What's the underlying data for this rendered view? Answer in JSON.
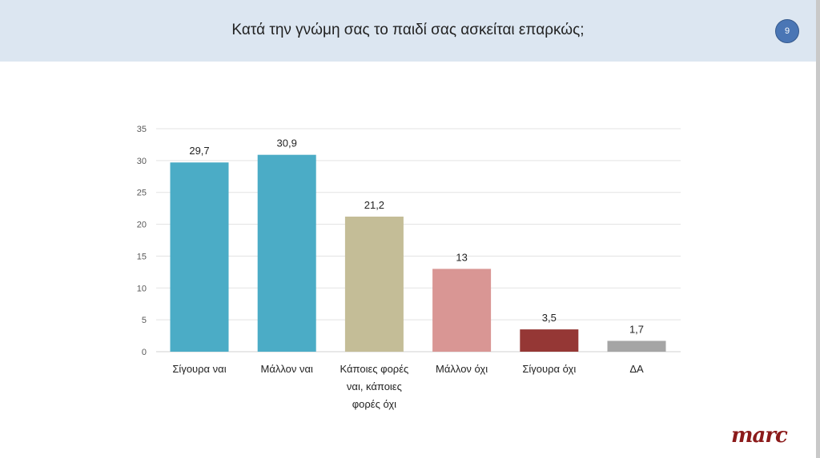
{
  "title": "Κατά την γνώμη σας το παιδί σας ασκείται επαρκώς;",
  "page_number": "9",
  "logo": "marc",
  "chart_data": {
    "type": "bar",
    "categories": [
      [
        "Σίγουρα ναι"
      ],
      [
        "Μάλλον ναι"
      ],
      [
        "Κάποιες φορές",
        "ναι, κάποιες",
        "φορές όχι"
      ],
      [
        "Μάλλον όχι"
      ],
      [
        "Σίγουρα όχι"
      ],
      [
        "ΔΑ"
      ]
    ],
    "values": [
      29.7,
      30.9,
      21.2,
      13,
      3.5,
      1.7
    ],
    "value_labels": [
      "29,7",
      "30,9",
      "21,2",
      "13",
      "3,5",
      "1,7"
    ],
    "colors": [
      "#4bacc6",
      "#4bacc6",
      "#c4bd97",
      "#d99694",
      "#953735",
      "#a5a5a5"
    ],
    "ylim": [
      0,
      35
    ],
    "yticks": [
      0,
      5,
      10,
      15,
      20,
      25,
      30,
      35
    ],
    "grid": true
  }
}
